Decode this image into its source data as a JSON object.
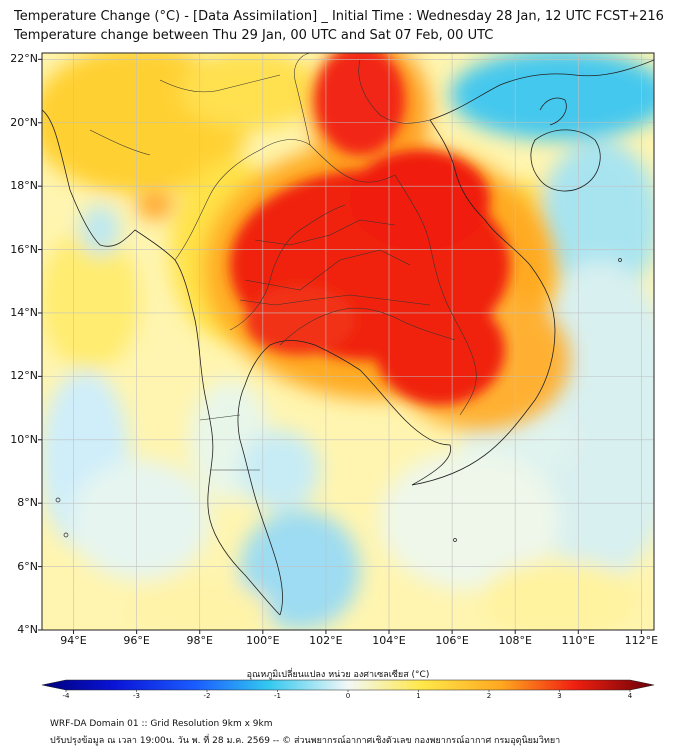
{
  "title": {
    "line1": "Temperature Change (°C) - [Data Assimilation] _ Initial Time : Wednesday 28 Jan, 12 UTC FCST+216",
    "line2": "Temperature change between Thu 29 Jan, 00 UTC and Sat 07 Feb, 00 UTC"
  },
  "axes": {
    "lon_labels": [
      "94°E",
      "96°E",
      "98°E",
      "100°E",
      "102°E",
      "104°E",
      "106°E",
      "108°E",
      "110°E",
      "112°E"
    ],
    "lat_labels": [
      "22°N",
      "20°N",
      "18°N",
      "16°N",
      "14°N",
      "12°N",
      "10°N",
      "8°N",
      "6°N",
      "4°N"
    ],
    "lon_values": [
      94,
      96,
      98,
      100,
      102,
      104,
      106,
      108,
      110,
      112
    ],
    "lat_values": [
      22,
      20,
      18,
      16,
      14,
      12,
      10,
      8,
      6,
      4
    ],
    "lon_range": [
      93.0,
      112.4
    ],
    "lat_range": [
      4.0,
      22.2
    ]
  },
  "colorbar": {
    "label": "อุณหภูมิเปลี่ยนแปลง หน่วย องศาเซลเซียส (°C)",
    "ticks": [
      "-4",
      "-3",
      "-2",
      "-1",
      "0",
      "1",
      "2",
      "3",
      "4"
    ],
    "range": [
      -4,
      4
    ],
    "colors": {
      "dark_blue": "#00007a",
      "blue": "#1a3cff",
      "sky": "#33c8f0",
      "pale": "#eef7f7",
      "yellow": "#ffe84a",
      "orange": "#ffa820",
      "red": "#f02010",
      "dark_red": "#6a0008"
    }
  },
  "footer": {
    "line1": "WRF-DA Domain 01 :: Grid Resolution 9km x 9km",
    "line2": "ปรับปรุงข้อมูล ณ เวลา 19:00น. วัน พ. ที่ 28 ม.ค. 2569 -- © ส่วนพยากรณ์อากาศเชิงตัวเลข กองพยากรณ์อากาศ กรมอุตุนิยมวิทยา"
  }
}
